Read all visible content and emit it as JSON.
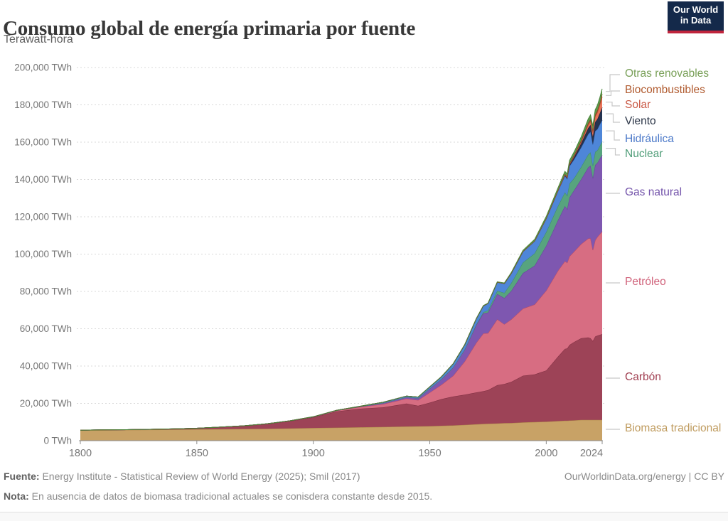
{
  "header": {
    "title": "Consumo global de energía primaria por fuente",
    "logo": {
      "line1": "Our World",
      "line2": "in Data",
      "bg": "#14294a",
      "stripe": "#c0243c"
    }
  },
  "subtitle": "Terawatt-hora",
  "chart_data": {
    "type": "area",
    "stacked": true,
    "unit": "TWh",
    "title": "Consumo global de energía primaria por fuente",
    "ylabel": "Terawatt-hora",
    "xlim": [
      1800,
      2024
    ],
    "ylim": [
      0,
      200000
    ],
    "grid": "dashed-horizontal",
    "legend_position": "right-edge-labels",
    "x_ticks": [
      1800,
      1850,
      1900,
      1950,
      2000,
      2024
    ],
    "y_ticks": [
      0,
      20000,
      40000,
      60000,
      80000,
      100000,
      120000,
      140000,
      160000,
      180000,
      200000
    ],
    "y_tick_labels": [
      "0 TWh",
      "20,000 TWh",
      "40,000 TWh",
      "60,000 TWh",
      "80,000 TWh",
      "100,000 TWh",
      "120,000 TWh",
      "140,000 TWh",
      "160,000 TWh",
      "180,000 TWh",
      "200,000 TWh"
    ],
    "x": [
      1800,
      1810,
      1820,
      1830,
      1840,
      1850,
      1860,
      1870,
      1880,
      1890,
      1900,
      1910,
      1920,
      1930,
      1940,
      1945,
      1950,
      1955,
      1960,
      1965,
      1970,
      1973,
      1975,
      1979,
      1982,
      1985,
      1990,
      1995,
      2000,
      2005,
      2008,
      2009,
      2010,
      2012,
      2015,
      2018,
      2019,
      2020,
      2021,
      2022,
      2023,
      2024
    ],
    "series": [
      {
        "name": "biomasa-tradicional",
        "label": "Biomasa tradicional",
        "color": "#c8a266",
        "line": "#ab8449",
        "label_color": "#bf9b5e",
        "values": [
          5556,
          5650,
          5750,
          5850,
          5950,
          6100,
          6200,
          6300,
          6400,
          6600,
          6800,
          7000,
          7200,
          7400,
          7600,
          7700,
          7800,
          8000,
          8200,
          8500,
          8800,
          9000,
          9100,
          9250,
          9400,
          9500,
          9800,
          10000,
          10200,
          10500,
          10700,
          10700,
          10800,
          10900,
          11111,
          11111,
          11111,
          11111,
          11111,
          11111,
          11111,
          11111
        ]
      },
      {
        "name": "carbon",
        "label": "Carbón",
        "color": "#9d4357",
        "line": "#7c2d3f",
        "label_color": "#a03e50",
        "values": [
          97,
          130,
          160,
          260,
          360,
          570,
          1060,
          1640,
          2540,
          3860,
          5730,
          8660,
          9960,
          10470,
          12270,
          11000,
          12600,
          14300,
          15440,
          16140,
          17060,
          17500,
          18000,
          20500,
          21000,
          22000,
          25000,
          25500,
          27430,
          34500,
          38500,
          38700,
          40500,
          42000,
          43790,
          44250,
          43800,
          42350,
          44700,
          45250,
          45600,
          46000
        ]
      },
      {
        "name": "petroleo",
        "label": "Petróleo",
        "color": "#d76d82",
        "line": "#bc4c63",
        "label_color": "#d0627a",
        "values": [
          0,
          0,
          0,
          0,
          0,
          0,
          6,
          17,
          86,
          130,
          180,
          400,
          890,
          1760,
          2650,
          3000,
          5440,
          7700,
          11100,
          17890,
          26660,
          31000,
          30500,
          35300,
          32000,
          33500,
          36000,
          37500,
          42880,
          46000,
          47000,
          46000,
          47500,
          48500,
          50500,
          53000,
          53600,
          48700,
          51600,
          52900,
          54000,
          55000
        ]
      },
      {
        "name": "gas-natural",
        "label": "Gas natural",
        "color": "#7e57b0",
        "line": "#64419b",
        "label_color": "#7454ab",
        "values": [
          0,
          0,
          0,
          0,
          0,
          0,
          0,
          8,
          31,
          72,
          64,
          140,
          220,
          600,
          880,
          1100,
          2090,
          3000,
          4470,
          6300,
          9610,
          10800,
          11100,
          13500,
          14000,
          15300,
          19000,
          20800,
          24000,
          27000,
          29500,
          28700,
          31600,
          32900,
          34700,
          38000,
          38900,
          38450,
          40300,
          39700,
          40500,
          41000
        ]
      },
      {
        "name": "nuclear",
        "label": "Nuclear",
        "color": "#57a47e",
        "line": "#3f8c66",
        "label_color": "#4f9d78",
        "values": [
          0,
          0,
          0,
          0,
          0,
          0,
          0,
          0,
          0,
          0,
          0,
          0,
          0,
          0,
          0,
          0,
          0,
          0,
          0,
          72,
          224,
          579,
          1049,
          1800,
          2800,
          4225,
          5676,
          6590,
          7323,
          7608,
          7382,
          7233,
          7374,
          6500,
          6656,
          6971,
          7141,
          6789,
          7031,
          6702,
          6824,
          7200
        ]
      },
      {
        "name": "hidraulica",
        "label": "Hidráulica",
        "color": "#4e86d8",
        "line": "#3a6fc0",
        "label_color": "#4a78c8",
        "values": [
          0,
          0,
          0,
          0,
          0,
          0,
          0,
          0,
          3,
          8,
          47,
          107,
          186,
          372,
          533,
          600,
          926,
          1300,
          1930,
          2542,
          3145,
          3400,
          3800,
          4600,
          5000,
          5200,
          5900,
          6600,
          7200,
          8000,
          8800,
          8900,
          9300,
          10000,
          10400,
          10850,
          11000,
          11250,
          11180,
          11300,
          11400,
          11500
        ]
      },
      {
        "name": "viento",
        "label": "Viento",
        "color": "#253350",
        "line": "#141f35",
        "label_color": "#2b3547",
        "values": [
          0,
          0,
          0,
          0,
          0,
          0,
          0,
          0,
          0,
          0,
          0,
          0,
          0,
          0,
          0,
          0,
          0,
          0,
          0,
          0,
          0,
          0,
          0,
          0,
          0,
          0,
          9,
          24,
          93,
          290,
          620,
          800,
          960,
          1430,
          2250,
          3330,
          3700,
          4190,
          4870,
          5490,
          6040,
          6800
        ]
      },
      {
        "name": "solar",
        "label": "Solar",
        "color": "#e97358",
        "line": "#cc5740",
        "label_color": "#ca5a46",
        "values": [
          0,
          0,
          0,
          0,
          0,
          0,
          0,
          0,
          0,
          0,
          0,
          0,
          0,
          0,
          0,
          0,
          0,
          0,
          0,
          0,
          0,
          0,
          0,
          0,
          0,
          0,
          0,
          0,
          3,
          11,
          34,
          56,
          86,
          250,
          685,
          1580,
          1860,
          2280,
          2820,
          3450,
          4260,
          5700
        ]
      },
      {
        "name": "biocombustibles",
        "label": "Biocombustibles",
        "color": "#a0522d",
        "line": "#81401f",
        "label_color": "#b05a2e",
        "values": [
          0,
          0,
          0,
          0,
          0,
          0,
          0,
          0,
          0,
          0,
          0,
          0,
          0,
          0,
          0,
          0,
          0,
          0,
          0,
          0,
          0,
          0,
          0,
          0,
          0,
          0,
          48,
          70,
          106,
          250,
          450,
          500,
          600,
          700,
          900,
          1100,
          1200,
          1150,
          1250,
          1300,
          1350,
          1400
        ]
      },
      {
        "name": "otras-renovables",
        "label": "Otras renovables",
        "color": "#5d9a4c",
        "line": "#49843a",
        "label_color": "#79a058",
        "values": [
          0,
          0,
          0,
          0,
          0,
          0,
          0,
          0,
          0,
          0,
          0,
          0,
          0,
          0,
          0,
          0,
          0,
          0,
          0,
          80,
          120,
          150,
          180,
          250,
          350,
          450,
          600,
          800,
          1000,
          1200,
          1350,
          1400,
          1500,
          1700,
          1900,
          2200,
          2300,
          2400,
          2500,
          2700,
          2800,
          2900
        ]
      }
    ]
  },
  "footer": {
    "source_label": "Fuente:",
    "source_text": "Energy Institute - Statistical Review of World Energy (2025); Smil (2017)",
    "credit": "OurWorldinData.org/energy | CC BY",
    "note_label": "Nota:",
    "note_text": "En ausencia de datos de biomasa tradicional actuales se conisdera constante desde 2015."
  }
}
